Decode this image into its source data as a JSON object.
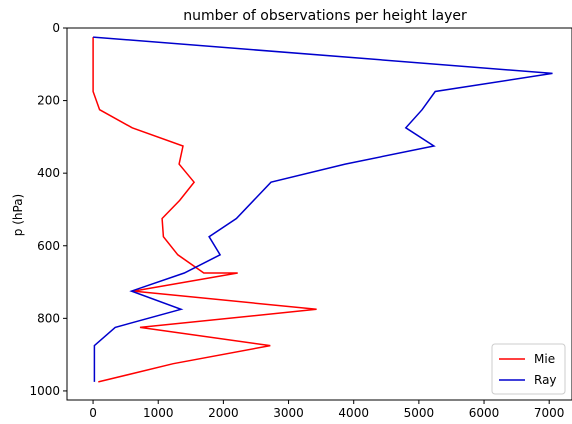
{
  "chart_data": {
    "type": "line",
    "title": "number of observations per height layer",
    "xlabel": "",
    "ylabel": "p (hPa)",
    "xlim": [
      -400,
      7350
    ],
    "ylim": [
      1025,
      0
    ],
    "y_inverted": true,
    "xticks": [
      0,
      1000,
      2000,
      3000,
      4000,
      5000,
      6000,
      7000
    ],
    "yticks": [
      0,
      200,
      400,
      600,
      800,
      1000
    ],
    "grid": false,
    "legend": "bottom-right",
    "series": [
      {
        "name": "Mie",
        "color": "#ff0000",
        "points": [
          {
            "x": 0,
            "y": 25
          },
          {
            "x": 0,
            "y": 75
          },
          {
            "x": 0,
            "y": 125
          },
          {
            "x": 0,
            "y": 175
          },
          {
            "x": 100,
            "y": 225
          },
          {
            "x": 600,
            "y": 275
          },
          {
            "x": 1380,
            "y": 325
          },
          {
            "x": 1320,
            "y": 375
          },
          {
            "x": 1550,
            "y": 425
          },
          {
            "x": 1330,
            "y": 475
          },
          {
            "x": 1060,
            "y": 525
          },
          {
            "x": 1080,
            "y": 575
          },
          {
            "x": 1300,
            "y": 625
          },
          {
            "x": 1700,
            "y": 675
          },
          {
            "x": 2220,
            "y": 675
          },
          {
            "x": 620,
            "y": 725
          },
          {
            "x": 3430,
            "y": 775
          },
          {
            "x": 720,
            "y": 825
          },
          {
            "x": 2720,
            "y": 875
          },
          {
            "x": 1230,
            "y": 925
          },
          {
            "x": 80,
            "y": 975
          }
        ]
      },
      {
        "name": "Ray",
        "color": "#0000cd",
        "points": [
          {
            "x": 0,
            "y": 25
          },
          {
            "x": 7050,
            "y": 125
          },
          {
            "x": 5250,
            "y": 175
          },
          {
            "x": 5050,
            "y": 225
          },
          {
            "x": 4800,
            "y": 275
          },
          {
            "x": 5230,
            "y": 325
          },
          {
            "x": 3870,
            "y": 375
          },
          {
            "x": 2730,
            "y": 425
          },
          {
            "x": 2200,
            "y": 525
          },
          {
            "x": 1780,
            "y": 575
          },
          {
            "x": 1950,
            "y": 625
          },
          {
            "x": 1400,
            "y": 675
          },
          {
            "x": 590,
            "y": 725
          },
          {
            "x": 1350,
            "y": 775
          },
          {
            "x": 340,
            "y": 825
          },
          {
            "x": 20,
            "y": 875
          },
          {
            "x": 20,
            "y": 925
          },
          {
            "x": 20,
            "y": 975
          }
        ]
      }
    ]
  }
}
